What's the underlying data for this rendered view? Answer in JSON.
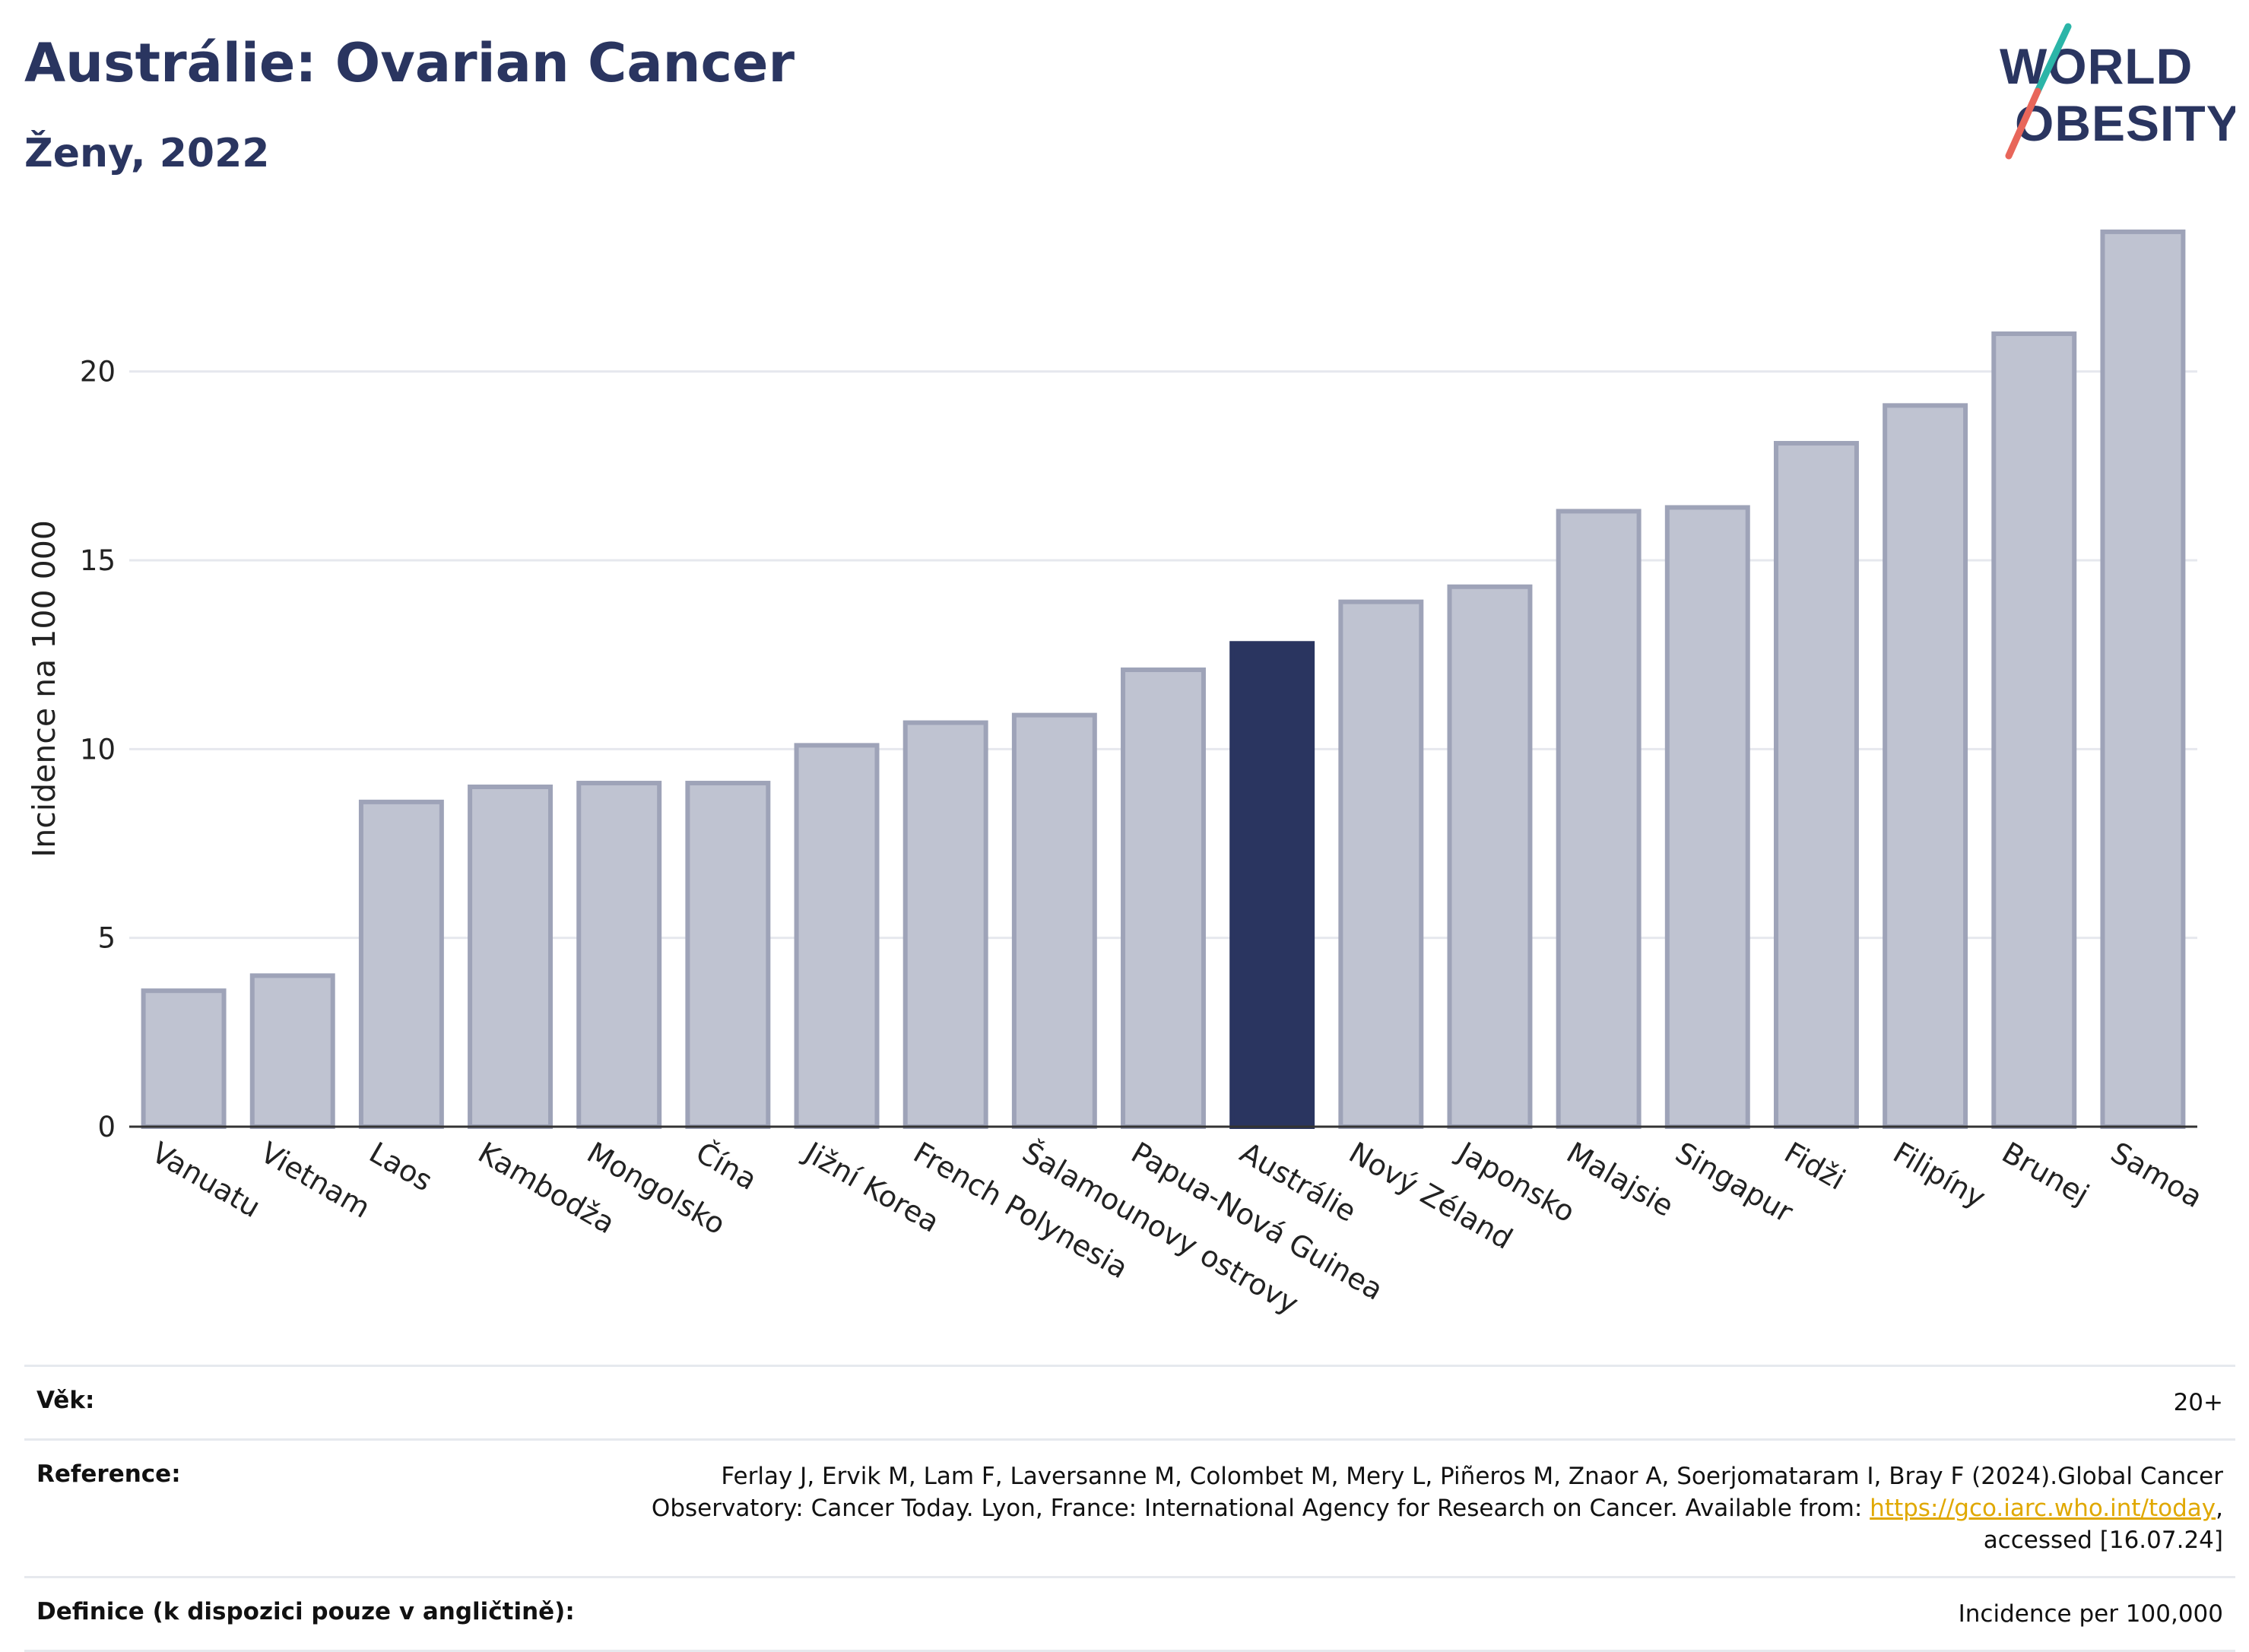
{
  "header": {
    "title": "Austrálie: Ovarian Cancer",
    "subtitle": "Ženy, 2022",
    "logo_line1": "WORLD",
    "logo_line2": "OBESITY"
  },
  "chart_data": {
    "type": "bar",
    "ylabel": "Incidence na 100 000",
    "xlabel": "",
    "ylim": [
      0,
      24
    ],
    "yticks": [
      0,
      5,
      10,
      15,
      20
    ],
    "grid": true,
    "categories": [
      "Vanuatu",
      "Vietnam",
      "Laos",
      "Kambodža",
      "Mongolsko",
      "Čína",
      "Jižní Korea",
      "French Polynesia",
      "Šalamounovy ostrovy",
      "Papua-Nová Guinea",
      "Austrálie",
      "Nový Zéland",
      "Japonsko",
      "Malajsie",
      "Singapur",
      "Fidži",
      "Filipíny",
      "Brunej",
      "Samoa"
    ],
    "values": [
      3.6,
      4.0,
      8.6,
      9.0,
      9.1,
      9.1,
      10.1,
      10.7,
      10.9,
      12.1,
      12.8,
      13.9,
      14.3,
      16.3,
      16.4,
      18.1,
      19.1,
      21.0,
      23.7
    ],
    "highlight": "Austrálie",
    "colors": {
      "bar": "#bfc3d1",
      "bar_edge": "#9ea3b8",
      "highlight": "#2a3560",
      "grid": "#e6e8ee",
      "axis": "#333333"
    }
  },
  "footer": {
    "age_label": "Věk:",
    "age_value": "20+",
    "reference_label": "Reference:",
    "reference_text_1": "Ferlay J, Ervik M, Lam F, Laversanne M, Colombet M, Mery L, Piñeros M, Znaor A, Soerjomataram I, Bray F (2024).Global Cancer Observatory: Cancer Today. Lyon, France: International Agency for Research on Cancer. Available from: ",
    "reference_link": "https://gco.iarc.who.int/today",
    "reference_text_2": ", accessed [16.07.24]",
    "definition_label": "Definice (k dispozici pouze v angličtině):",
    "definition_value": "Incidence per 100,000"
  }
}
